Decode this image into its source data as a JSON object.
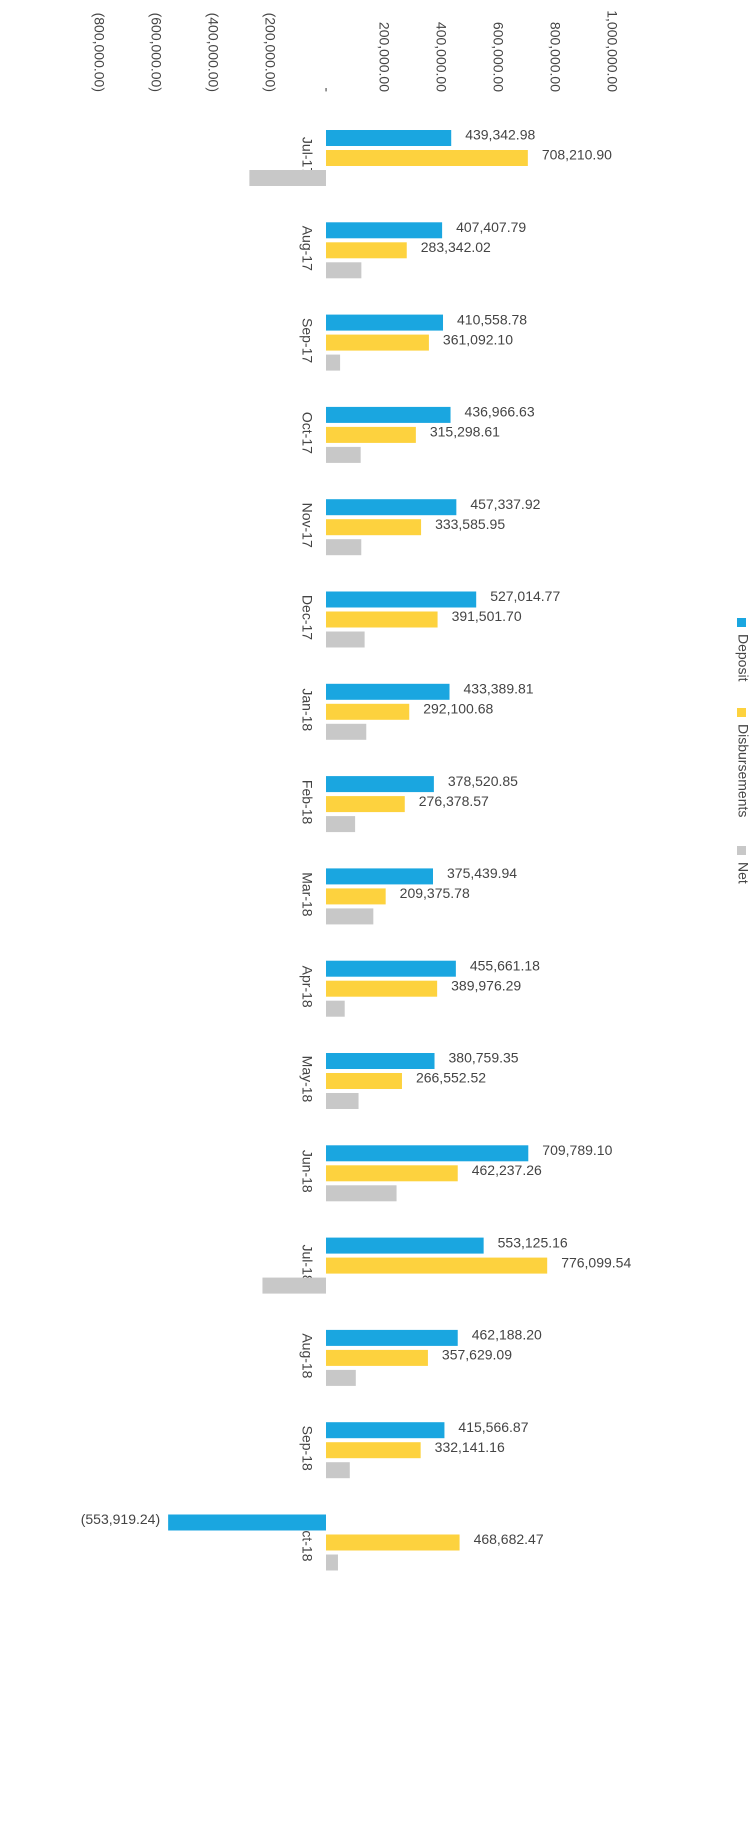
{
  "chart_data": {
    "type": "bar",
    "orientation": "horizontal",
    "categories": [
      "Jul-17",
      "Aug-17",
      "Sep-17",
      "Oct-17",
      "Nov-17",
      "Dec-17",
      "Jan-18",
      "Feb-18",
      "Mar-18",
      "Apr-18",
      "May-18",
      "Jun-18",
      "Jul-18",
      "Aug-18",
      "Sep-18",
      "Oct-18"
    ],
    "series": [
      {
        "name": "Deposit",
        "color": "#1aa6e0",
        "values": [
          439342.98,
          407407.79,
          410558.78,
          436966.63,
          457337.92,
          527014.77,
          433389.81,
          378520.85,
          375439.94,
          455661.18,
          380759.35,
          709789.1,
          553125.16,
          462188.2,
          415566.87,
          -553919.24
        ],
        "value_labels": [
          "439,342.98",
          "407,407.79",
          "410,558.78",
          "436,966.63",
          "457,337.92",
          "527,014.77",
          "433,389.81",
          "378,520.85",
          "375,439.94",
          "455,661.18",
          "380,759.35",
          "709,789.10",
          "553,125.16",
          "462,188.20",
          "415,566.87",
          "(553,919.24)"
        ]
      },
      {
        "name": "Disbursements",
        "color": "#fdd23e",
        "values": [
          708210.9,
          283342.02,
          361092.1,
          315298.61,
          333585.95,
          391501.7,
          292100.68,
          276378.57,
          209375.78,
          389976.29,
          266552.52,
          462237.26,
          776099.54,
          357629.09,
          332141.16,
          468682.47
        ],
        "value_labels": [
          "708,210.90",
          "283,342.02",
          "361,092.10",
          "315,298.61",
          "333,585.95",
          "391,501.70",
          "292,100.68",
          "276,378.57",
          "209,375.78",
          "389,976.29",
          "266,552.52",
          "462,237.26",
          "776,099.54",
          "357,629.09",
          "332,141.16",
          "468,682.47"
        ]
      },
      {
        "name": "Net",
        "color": "#c8c8c8",
        "values": [
          -268868,
          124066,
          49467,
          121668,
          123752,
          135513,
          141289,
          102142,
          166064,
          65685,
          114207,
          247552,
          -222974,
          104559,
          83426,
          42000
        ]
      }
    ],
    "xlim": [
      -800000,
      1000000
    ],
    "xticks": [
      {
        "value": 1000000,
        "label": "1,000,000.00"
      },
      {
        "value": 800000,
        "label": "800,000.00"
      },
      {
        "value": 600000,
        "label": "600,000.00"
      },
      {
        "value": 400000,
        "label": "400,000.00"
      },
      {
        "value": 200000,
        "label": "200,000.00"
      },
      {
        "value": 0,
        "label": "-"
      },
      {
        "value": -200000,
        "label": "(200,000.00)"
      },
      {
        "value": -400000,
        "label": "(400,000.00)"
      },
      {
        "value": -600000,
        "label": "(600,000.00)"
      },
      {
        "value": -800000,
        "label": "(800,000.00)"
      }
    ],
    "grid": false,
    "legend": "right"
  }
}
